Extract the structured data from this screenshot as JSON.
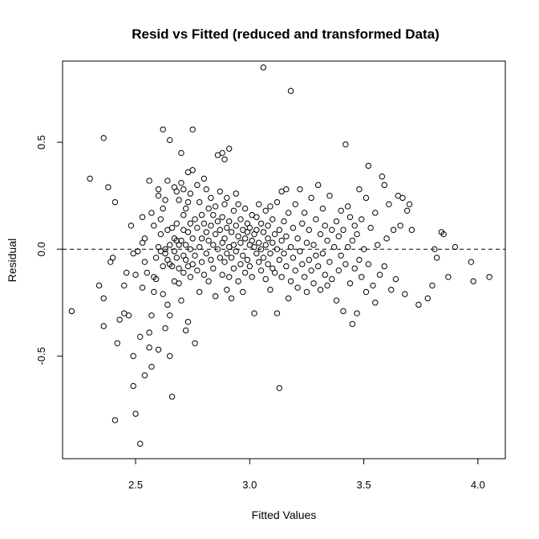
{
  "chart_data": {
    "type": "scatter",
    "title": "Resid vs Fitted (reduced and transformed Data)",
    "xlabel": "Fitted Values",
    "ylabel": "Residual",
    "xlim": [
      2.18,
      4.12
    ],
    "ylim": [
      -0.98,
      0.88
    ],
    "x_ticks": [
      2.5,
      3.0,
      3.5,
      4.0
    ],
    "x_tick_labels": [
      "2.5",
      "3.0",
      "3.5",
      "4.0"
    ],
    "y_ticks": [
      -0.5,
      0.0,
      0.5
    ],
    "y_tick_labels": [
      "-0.5",
      "0.0",
      "0.5"
    ],
    "reference_line": {
      "y": 0,
      "style": "dashed"
    },
    "grid": false,
    "legend": "none",
    "marker": "open-circle",
    "points": [
      [
        2.22,
        -0.29
      ],
      [
        2.3,
        0.33
      ],
      [
        2.34,
        -0.17
      ],
      [
        2.36,
        0.52
      ],
      [
        2.36,
        -0.36
      ],
      [
        2.36,
        -0.23
      ],
      [
        2.38,
        0.29
      ],
      [
        2.39,
        -0.06
      ],
      [
        2.4,
        -0.04
      ],
      [
        2.41,
        0.22
      ],
      [
        2.41,
        -0.8
      ],
      [
        2.42,
        -0.44
      ],
      [
        2.43,
        -0.33
      ],
      [
        2.45,
        -0.3
      ],
      [
        2.45,
        -0.17
      ],
      [
        2.46,
        -0.11
      ],
      [
        2.47,
        -0.31
      ],
      [
        2.48,
        0.11
      ],
      [
        2.49,
        -0.5
      ],
      [
        2.49,
        -0.64
      ],
      [
        2.49,
        -0.02
      ],
      [
        2.5,
        -0.77
      ],
      [
        2.5,
        -0.12
      ],
      [
        2.51,
        -0.01
      ],
      [
        2.52,
        -0.41
      ],
      [
        2.52,
        -0.91
      ],
      [
        2.53,
        0.03
      ],
      [
        2.53,
        0.15
      ],
      [
        2.53,
        -0.18
      ],
      [
        2.54,
        -0.06
      ],
      [
        2.54,
        -0.59
      ],
      [
        2.54,
        0.05
      ],
      [
        2.55,
        -0.11
      ],
      [
        2.56,
        0.32
      ],
      [
        2.56,
        -0.39
      ],
      [
        2.56,
        -0.46
      ],
      [
        2.57,
        -0.55
      ],
      [
        2.57,
        -0.31
      ],
      [
        2.57,
        0.17
      ],
      [
        2.58,
        -0.2
      ],
      [
        2.58,
        0.11
      ],
      [
        2.58,
        -0.13
      ],
      [
        2.59,
        -0.14
      ],
      [
        2.59,
        -0.04
      ],
      [
        2.6,
        0.28
      ],
      [
        2.6,
        0.25
      ],
      [
        2.6,
        -0.47
      ],
      [
        2.6,
        0.01
      ],
      [
        2.61,
        -0.01
      ],
      [
        2.61,
        0.07
      ],
      [
        2.61,
        0.14
      ],
      [
        2.62,
        0.56
      ],
      [
        2.62,
        -0.21
      ],
      [
        2.62,
        0.19
      ],
      [
        2.62,
        -0.08
      ],
      [
        2.63,
        -0.02
      ],
      [
        2.63,
        0.23
      ],
      [
        2.63,
        -0.37
      ],
      [
        2.63,
        0.0
      ],
      [
        2.64,
        0.32
      ],
      [
        2.64,
        -0.05
      ],
      [
        2.64,
        0.09
      ],
      [
        2.64,
        -0.26
      ],
      [
        2.65,
        0.51
      ],
      [
        2.65,
        -0.07
      ],
      [
        2.65,
        -0.5
      ],
      [
        2.65,
        0.02
      ],
      [
        2.65,
        -0.31
      ],
      [
        2.66,
        -0.69
      ],
      [
        2.66,
        0.1
      ],
      [
        2.66,
        -0.08
      ],
      [
        2.67,
        0.05
      ],
      [
        2.67,
        0.29
      ],
      [
        2.67,
        -0.01
      ],
      [
        2.67,
        -0.15
      ],
      [
        2.68,
        0.12
      ],
      [
        2.68,
        -0.04
      ],
      [
        2.68,
        0.04
      ],
      [
        2.68,
        0.27
      ],
      [
        2.69,
        -0.09
      ],
      [
        2.69,
        0.23
      ],
      [
        2.69,
        0.02
      ],
      [
        2.69,
        -0.16
      ],
      [
        2.7,
        0.45
      ],
      [
        2.7,
        0.31
      ],
      [
        2.7,
        0.04
      ],
      [
        2.7,
        -0.24
      ],
      [
        2.71,
        0.16
      ],
      [
        2.71,
        -0.03
      ],
      [
        2.71,
        0.09
      ],
      [
        2.71,
        -0.11
      ],
      [
        2.71,
        0.28
      ],
      [
        2.72,
        0.19
      ],
      [
        2.72,
        -0.05
      ],
      [
        2.72,
        0.02
      ],
      [
        2.72,
        -0.38
      ],
      [
        2.73,
        0.36
      ],
      [
        2.73,
        0.08
      ],
      [
        2.73,
        -0.08
      ],
      [
        2.73,
        0.22
      ],
      [
        2.73,
        -0.34
      ],
      [
        2.74,
        0.12
      ],
      [
        2.74,
        0.0
      ],
      [
        2.74,
        -0.13
      ],
      [
        2.74,
        0.26
      ],
      [
        2.75,
        0.56
      ],
      [
        2.75,
        0.37
      ],
      [
        2.75,
        0.05
      ],
      [
        2.75,
        -0.07
      ],
      [
        2.76,
        0.14
      ],
      [
        2.76,
        -0.44
      ],
      [
        2.76,
        -0.03
      ],
      [
        2.77,
        0.3
      ],
      [
        2.77,
        0.1
      ],
      [
        2.77,
        -0.1
      ],
      [
        2.78,
        0.22
      ],
      [
        2.78,
        0.01
      ],
      [
        2.78,
        -0.2
      ],
      [
        2.79,
        0.16
      ],
      [
        2.79,
        0.05
      ],
      [
        2.79,
        -0.06
      ],
      [
        2.8,
        0.33
      ],
      [
        2.8,
        0.12
      ],
      [
        2.8,
        -0.12
      ],
      [
        2.81,
        0.28
      ],
      [
        2.81,
        0.08
      ],
      [
        2.81,
        -0.02
      ],
      [
        2.82,
        0.19
      ],
      [
        2.82,
        0.04
      ],
      [
        2.82,
        -0.15
      ],
      [
        2.83,
        0.24
      ],
      [
        2.83,
        0.11
      ],
      [
        2.83,
        -0.05
      ],
      [
        2.84,
        0.16
      ],
      [
        2.84,
        0.02
      ],
      [
        2.84,
        -0.09
      ],
      [
        2.85,
        0.2
      ],
      [
        2.85,
        0.07
      ],
      [
        2.85,
        -0.22
      ],
      [
        2.86,
        0.44
      ],
      [
        2.86,
        0.13
      ],
      [
        2.86,
        0.0
      ],
      [
        2.87,
        0.09
      ],
      [
        2.87,
        -0.04
      ],
      [
        2.87,
        0.27
      ],
      [
        2.88,
        0.45
      ],
      [
        2.88,
        0.15
      ],
      [
        2.88,
        0.03
      ],
      [
        2.88,
        -0.12
      ],
      [
        2.89,
        0.42
      ],
      [
        2.89,
        0.21
      ],
      [
        2.89,
        0.05
      ],
      [
        2.89,
        -0.06
      ],
      [
        2.9,
        0.24
      ],
      [
        2.9,
        0.1
      ],
      [
        2.9,
        -0.02
      ],
      [
        2.9,
        -0.19
      ],
      [
        2.91,
        0.47
      ],
      [
        2.91,
        0.13
      ],
      [
        2.91,
        0.01
      ],
      [
        2.91,
        -0.13
      ],
      [
        2.92,
        0.08
      ],
      [
        2.92,
        -0.04
      ],
      [
        2.92,
        -0.23
      ],
      [
        2.93,
        0.18
      ],
      [
        2.93,
        0.02
      ],
      [
        2.93,
        -0.09
      ],
      [
        2.94,
        0.26
      ],
      [
        2.94,
        0.11
      ],
      [
        2.94,
        -0.01
      ],
      [
        2.95,
        0.06
      ],
      [
        2.95,
        -0.15
      ],
      [
        2.95,
        0.21
      ],
      [
        2.96,
        0.03
      ],
      [
        2.96,
        -0.07
      ],
      [
        2.96,
        0.14
      ],
      [
        2.97,
        0.09
      ],
      [
        2.97,
        -0.03
      ],
      [
        2.97,
        -0.2
      ],
      [
        2.98,
        0.05
      ],
      [
        2.98,
        -0.11
      ],
      [
        2.98,
        0.19
      ],
      [
        2.99,
        0.08
      ],
      [
        2.99,
        -0.05
      ],
      [
        2.99,
        0.12
      ],
      [
        3.0,
        0.02
      ],
      [
        3.0,
        -0.08
      ],
      [
        3.0,
        0.1
      ],
      [
        3.01,
        0.04
      ],
      [
        3.01,
        -0.13
      ],
      [
        3.01,
        0.16
      ],
      [
        3.02,
        0.01
      ],
      [
        3.02,
        -0.3
      ],
      [
        3.02,
        0.07
      ],
      [
        3.03,
        0.15
      ],
      [
        3.03,
        -0.02
      ],
      [
        3.03,
        0.09
      ],
      [
        3.04,
        0.21
      ],
      [
        3.04,
        -0.06
      ],
      [
        3.04,
        0.03
      ],
      [
        3.05,
        0.12
      ],
      [
        3.05,
        -0.1
      ],
      [
        3.05,
        0.0
      ],
      [
        3.06,
        0.85
      ],
      [
        3.06,
        0.08
      ],
      [
        3.06,
        -0.04
      ],
      [
        3.07,
        0.18
      ],
      [
        3.07,
        0.02
      ],
      [
        3.07,
        -0.14
      ],
      [
        3.08,
        0.11
      ],
      [
        3.08,
        -0.07
      ],
      [
        3.08,
        0.05
      ],
      [
        3.09,
        0.2
      ],
      [
        3.09,
        -0.02
      ],
      [
        3.09,
        -0.19
      ],
      [
        3.1,
        0.14
      ],
      [
        3.1,
        0.03
      ],
      [
        3.1,
        -0.09
      ],
      [
        3.11,
        0.07
      ],
      [
        3.11,
        -0.11
      ],
      [
        3.12,
        -0.3
      ],
      [
        3.12,
        0.22
      ],
      [
        3.12,
        0.0
      ],
      [
        3.13,
        -0.65
      ],
      [
        3.13,
        0.09
      ],
      [
        3.13,
        -0.05
      ],
      [
        3.14,
        0.27
      ],
      [
        3.14,
        0.04
      ],
      [
        3.14,
        -0.13
      ],
      [
        3.15,
        0.13
      ],
      [
        3.15,
        -0.02
      ],
      [
        3.16,
        0.28
      ],
      [
        3.16,
        0.06
      ],
      [
        3.16,
        -0.08
      ],
      [
        3.17,
        -0.23
      ],
      [
        3.17,
        0.17
      ],
      [
        3.18,
        0.74
      ],
      [
        3.18,
        0.01
      ],
      [
        3.18,
        -0.15
      ],
      [
        3.19,
        0.1
      ],
      [
        3.19,
        -0.04
      ],
      [
        3.2,
        0.21
      ],
      [
        3.2,
        -0.1
      ],
      [
        3.21,
        0.05
      ],
      [
        3.21,
        -0.18
      ],
      [
        3.22,
        0.28
      ],
      [
        3.22,
        -0.01
      ],
      [
        3.23,
        0.12
      ],
      [
        3.23,
        -0.07
      ],
      [
        3.24,
        0.17
      ],
      [
        3.24,
        -0.13
      ],
      [
        3.25,
        0.03
      ],
      [
        3.25,
        -0.2
      ],
      [
        3.26,
        0.09
      ],
      [
        3.26,
        -0.05
      ],
      [
        3.27,
        0.24
      ],
      [
        3.27,
        -0.1
      ],
      [
        3.28,
        0.02
      ],
      [
        3.28,
        -0.16
      ],
      [
        3.29,
        0.14
      ],
      [
        3.29,
        -0.03
      ],
      [
        3.3,
        0.3
      ],
      [
        3.3,
        -0.08
      ],
      [
        3.31,
        0.07
      ],
      [
        3.31,
        -0.19
      ],
      [
        3.32,
        0.19
      ],
      [
        3.32,
        -0.02
      ],
      [
        3.33,
        0.11
      ],
      [
        3.33,
        -0.12
      ],
      [
        3.34,
        0.04
      ],
      [
        3.34,
        -0.17
      ],
      [
        3.35,
        0.25
      ],
      [
        3.35,
        -0.06
      ],
      [
        3.36,
        0.09
      ],
      [
        3.36,
        -0.14
      ],
      [
        3.37,
        0.01
      ],
      [
        3.38,
        -0.24
      ],
      [
        3.38,
        0.13
      ],
      [
        3.39,
        0.06
      ],
      [
        3.39,
        -0.1
      ],
      [
        3.4,
        0.18
      ],
      [
        3.4,
        -0.03
      ],
      [
        3.41,
        -0.29
      ],
      [
        3.41,
        0.09
      ],
      [
        3.42,
        0.49
      ],
      [
        3.42,
        -0.07
      ],
      [
        3.43,
        0.2
      ],
      [
        3.43,
        0.01
      ],
      [
        3.44,
        -0.16
      ],
      [
        3.44,
        0.15
      ],
      [
        3.45,
        -0.35
      ],
      [
        3.45,
        0.04
      ],
      [
        3.46,
        0.11
      ],
      [
        3.46,
        -0.09
      ],
      [
        3.47,
        -0.3
      ],
      [
        3.47,
        0.07
      ],
      [
        3.48,
        0.28
      ],
      [
        3.48,
        -0.05
      ],
      [
        3.49,
        0.14
      ],
      [
        3.49,
        -0.13
      ],
      [
        3.5,
        0.0
      ],
      [
        3.51,
        -0.2
      ],
      [
        3.51,
        0.24
      ],
      [
        3.52,
        0.39
      ],
      [
        3.52,
        -0.07
      ],
      [
        3.53,
        0.1
      ],
      [
        3.54,
        -0.17
      ],
      [
        3.55,
        0.17
      ],
      [
        3.55,
        -0.25
      ],
      [
        3.56,
        0.02
      ],
      [
        3.57,
        -0.12
      ],
      [
        3.58,
        0.34
      ],
      [
        3.59,
        0.3
      ],
      [
        3.59,
        -0.08
      ],
      [
        3.6,
        0.05
      ],
      [
        3.61,
        0.21
      ],
      [
        3.62,
        -0.19
      ],
      [
        3.63,
        0.09
      ],
      [
        3.64,
        -0.14
      ],
      [
        3.65,
        0.25
      ],
      [
        3.66,
        0.11
      ],
      [
        3.67,
        0.24
      ],
      [
        3.68,
        -0.21
      ],
      [
        3.69,
        0.18
      ],
      [
        3.7,
        0.21
      ],
      [
        3.71,
        0.09
      ],
      [
        3.74,
        -0.26
      ],
      [
        3.78,
        -0.23
      ],
      [
        3.8,
        -0.17
      ],
      [
        3.81,
        0.0
      ],
      [
        3.82,
        -0.04
      ],
      [
        3.84,
        0.08
      ],
      [
        3.85,
        0.07
      ],
      [
        3.87,
        -0.13
      ],
      [
        3.9,
        0.01
      ],
      [
        3.97,
        -0.06
      ],
      [
        3.98,
        -0.15
      ],
      [
        4.05,
        -0.13
      ]
    ]
  }
}
